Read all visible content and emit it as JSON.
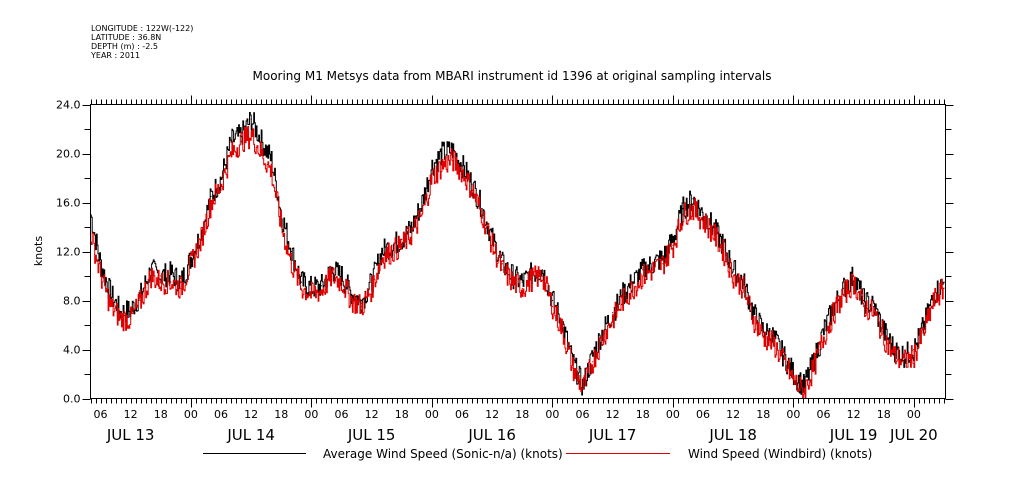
{
  "chart_data": {
    "type": "line",
    "title": "Mooring M1 Metsys data from MBARI instrument id 1396 at original sampling intervals",
    "metadata_lines": [
      "LONGITUDE : 122W(-122)",
      "LATITUDE : 36.8N",
      "DEPTH (m) : -2.5",
      "YEAR : 2011"
    ],
    "xlabel": "",
    "ylabel": "knots",
    "ylim": [
      0,
      24
    ],
    "xlim_hours_since_jul13_00": [
      4,
      174.3
    ],
    "y_ticks": [
      "0.0",
      "4.0",
      "8.0",
      "12.0",
      "16.0",
      "20.0",
      "24.0"
    ],
    "y_tick_values": [
      0,
      4,
      8,
      12,
      16,
      20,
      24
    ],
    "x_hour_ticks": [
      {
        "h": 6,
        "label": "06"
      },
      {
        "h": 12,
        "label": "12"
      },
      {
        "h": 18,
        "label": "18"
      },
      {
        "h": 24,
        "label": "00"
      },
      {
        "h": 30,
        "label": "06"
      },
      {
        "h": 36,
        "label": "12"
      },
      {
        "h": 42,
        "label": "18"
      },
      {
        "h": 48,
        "label": "00"
      },
      {
        "h": 54,
        "label": "06"
      },
      {
        "h": 60,
        "label": "12"
      },
      {
        "h": 66,
        "label": "18"
      },
      {
        "h": 72,
        "label": "00"
      },
      {
        "h": 78,
        "label": "06"
      },
      {
        "h": 84,
        "label": "12"
      },
      {
        "h": 90,
        "label": "18"
      },
      {
        "h": 96,
        "label": "00"
      },
      {
        "h": 102,
        "label": "06"
      },
      {
        "h": 108,
        "label": "12"
      },
      {
        "h": 114,
        "label": "18"
      },
      {
        "h": 120,
        "label": "00"
      },
      {
        "h": 126,
        "label": "06"
      },
      {
        "h": 132,
        "label": "12"
      },
      {
        "h": 138,
        "label": "18"
      },
      {
        "h": 144,
        "label": "00"
      },
      {
        "h": 150,
        "label": "06"
      },
      {
        "h": 156,
        "label": "12"
      },
      {
        "h": 162,
        "label": "18"
      },
      {
        "h": 168,
        "label": "00"
      }
    ],
    "x_day_labels": [
      {
        "h": 12,
        "label": "JUL 13"
      },
      {
        "h": 36,
        "label": "JUL 14"
      },
      {
        "h": 60,
        "label": "JUL 15"
      },
      {
        "h": 84,
        "label": "JUL 16"
      },
      {
        "h": 108,
        "label": "JUL 17"
      },
      {
        "h": 132,
        "label": "JUL 18"
      },
      {
        "h": 156,
        "label": "JUL 19"
      },
      {
        "h": 168,
        "label": "JUL 20"
      }
    ],
    "legend": "bottom-center",
    "grid": false,
    "x_hours": [
      4,
      6,
      8,
      10,
      12,
      14,
      16,
      18,
      20,
      22,
      24,
      26,
      28,
      30,
      32,
      34,
      36,
      38,
      40,
      42,
      44,
      46,
      48,
      50,
      52,
      54,
      56,
      58,
      60,
      62,
      64,
      66,
      68,
      70,
      72,
      74,
      76,
      78,
      80,
      82,
      84,
      86,
      88,
      90,
      92,
      94,
      96,
      98,
      100,
      102,
      104,
      106,
      108,
      110,
      112,
      114,
      116,
      118,
      120,
      122,
      124,
      126,
      128,
      130,
      132,
      134,
      136,
      138,
      140,
      142,
      144,
      146,
      148,
      150,
      152,
      154,
      156,
      158,
      160,
      162,
      164,
      166,
      168,
      170,
      172,
      174
    ],
    "series": [
      {
        "name": "Average Wind Speed (Sonic-n/a) (knots)",
        "color": "#000000",
        "values": [
          15.0,
          11.0,
          8.5,
          7.0,
          7.2,
          8.5,
          10.5,
          10.0,
          10.2,
          9.5,
          11.5,
          13.5,
          16.5,
          18.0,
          21.0,
          21.5,
          22.8,
          21.0,
          19.5,
          15.0,
          12.0,
          9.5,
          9.0,
          9.2,
          10.5,
          10.0,
          8.5,
          8.0,
          9.5,
          12.0,
          12.5,
          13.0,
          14.0,
          16.0,
          19.0,
          20.0,
          20.3,
          19.0,
          17.5,
          15.5,
          13.0,
          11.0,
          10.0,
          9.5,
          10.2,
          10.5,
          8.0,
          6.0,
          3.0,
          1.0,
          3.5,
          5.5,
          7.0,
          8.5,
          9.5,
          10.5,
          11.0,
          11.5,
          13.0,
          15.5,
          16.3,
          15.0,
          14.0,
          12.5,
          10.5,
          9.5,
          7.0,
          5.5,
          5.0,
          3.5,
          2.0,
          1.0,
          3.0,
          5.5,
          7.5,
          9.0,
          10.0,
          8.0,
          7.5,
          5.5,
          4.0,
          3.5,
          4.0,
          6.0,
          8.5,
          9.5
        ]
      },
      {
        "name": "Wind Speed (Windbird) (knots)",
        "color": "#e00000",
        "values": [
          13.5,
          10.0,
          7.5,
          6.5,
          6.5,
          8.0,
          10.0,
          9.5,
          9.5,
          9.0,
          11.0,
          13.0,
          16.0,
          17.5,
          20.0,
          21.0,
          21.5,
          20.0,
          18.5,
          14.0,
          11.0,
          9.0,
          8.5,
          8.8,
          10.0,
          9.5,
          8.0,
          7.5,
          9.0,
          11.5,
          12.0,
          12.5,
          13.5,
          15.0,
          18.0,
          19.0,
          19.5,
          18.5,
          17.0,
          15.0,
          12.5,
          10.5,
          9.5,
          9.0,
          9.8,
          10.0,
          7.5,
          5.5,
          2.5,
          0.8,
          3.0,
          5.0,
          6.5,
          8.0,
          9.0,
          10.0,
          10.5,
          11.0,
          12.5,
          15.0,
          15.5,
          14.5,
          13.5,
          12.0,
          10.0,
          9.0,
          6.5,
          5.0,
          4.5,
          3.0,
          1.5,
          0.5,
          2.5,
          5.0,
          7.0,
          8.5,
          9.5,
          7.5,
          7.0,
          5.0,
          3.5,
          3.0,
          3.5,
          5.5,
          8.0,
          9.0
        ]
      }
    ]
  }
}
